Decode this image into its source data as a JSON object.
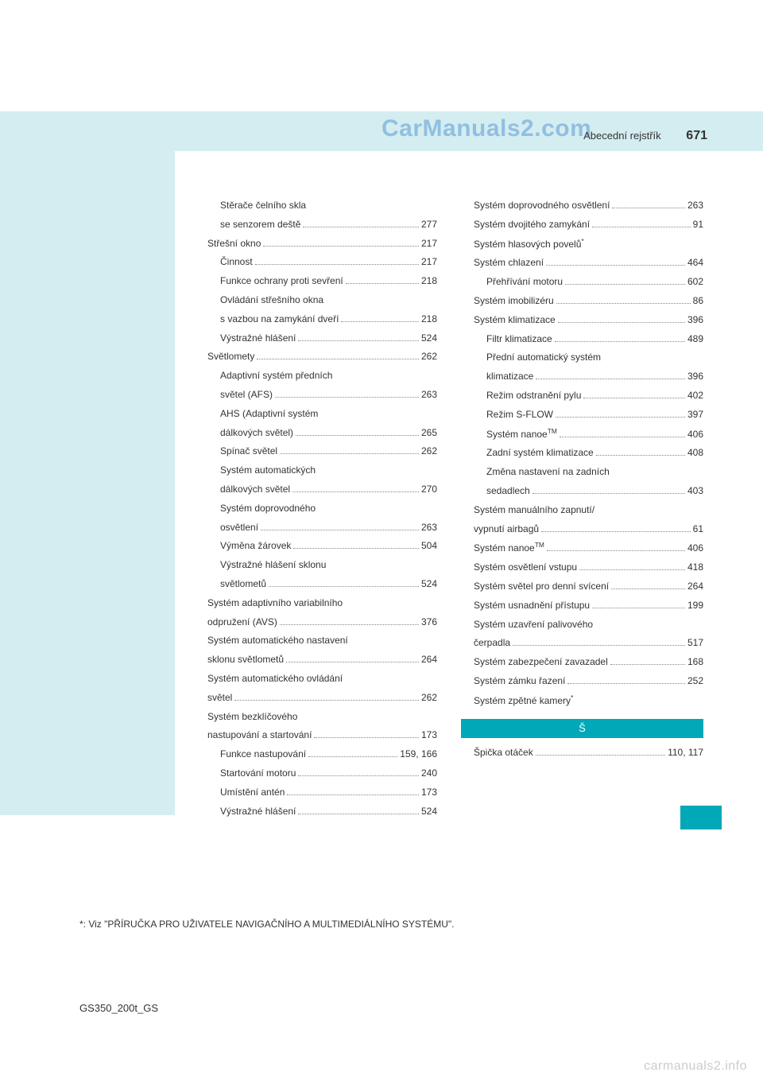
{
  "watermark_top": "CarManuals2.com",
  "watermark_bottom": "carmanuals2.info",
  "header_label": "Abecední rejstřík",
  "page_number": "671",
  "model": "GS350_200t_GS",
  "footnote": "*: Viz \"PŘÍRUČKA PRO UŽIVATELE NAVIGAČNÍHO A MULTIMEDIÁLNÍHO SYSTÉMU\".",
  "section_letter": "Š",
  "left": [
    {
      "indent": 2,
      "label": "Stěrače čelního skla",
      "page": ""
    },
    {
      "indent": 2,
      "label": "se senzorem deště",
      "page": "277"
    },
    {
      "indent": 1,
      "label": "Střešní okno",
      "page": "217"
    },
    {
      "indent": 2,
      "label": "Činnost",
      "page": "217"
    },
    {
      "indent": 2,
      "label": "Funkce ochrany proti sevření",
      "page": "218"
    },
    {
      "indent": 2,
      "label": "Ovládání střešního okna",
      "page": ""
    },
    {
      "indent": 2,
      "label": "s vazbou na zamykání dveří",
      "page": "218"
    },
    {
      "indent": 2,
      "label": "Výstražné hlášení",
      "page": "524"
    },
    {
      "indent": 1,
      "label": "Světlomety",
      "page": "262"
    },
    {
      "indent": 2,
      "label": "Adaptivní systém předních",
      "page": ""
    },
    {
      "indent": 2,
      "label": "světel (AFS)",
      "page": "263"
    },
    {
      "indent": 2,
      "label": "AHS (Adaptivní systém",
      "page": ""
    },
    {
      "indent": 2,
      "label": "dálkových světel)",
      "page": "265"
    },
    {
      "indent": 2,
      "label": "Spínač světel",
      "page": "262"
    },
    {
      "indent": 2,
      "label": "Systém automatických",
      "page": ""
    },
    {
      "indent": 2,
      "label": "dálkových světel",
      "page": "270"
    },
    {
      "indent": 2,
      "label": "Systém doprovodného",
      "page": ""
    },
    {
      "indent": 2,
      "label": "osvětlení",
      "page": "263"
    },
    {
      "indent": 2,
      "label": "Výměna žárovek",
      "page": "504"
    },
    {
      "indent": 2,
      "label": "Výstražné hlášení sklonu",
      "page": ""
    },
    {
      "indent": 2,
      "label": "světlometů",
      "page": "524"
    },
    {
      "indent": 1,
      "label": "Systém adaptivního variabilního",
      "page": ""
    },
    {
      "indent": 1,
      "label": "odpružení (AVS)",
      "page": "376"
    },
    {
      "indent": 1,
      "label": "Systém automatického nastavení",
      "page": ""
    },
    {
      "indent": 1,
      "label": "sklonu světlometů",
      "page": "264"
    },
    {
      "indent": 1,
      "label": "Systém automatického ovládání",
      "page": ""
    },
    {
      "indent": 1,
      "label": "světel",
      "page": "262"
    },
    {
      "indent": 1,
      "label": "Systém bezklíčového",
      "page": ""
    },
    {
      "indent": 1,
      "label": "nastupování a startování",
      "page": "173"
    },
    {
      "indent": 2,
      "label": "Funkce nastupování",
      "page": "159, 166"
    },
    {
      "indent": 2,
      "label": "Startování motoru",
      "page": "240"
    },
    {
      "indent": 2,
      "label": "Umístění antén",
      "page": "173"
    },
    {
      "indent": 2,
      "label": "Výstražné hlášení",
      "page": "524"
    }
  ],
  "right": [
    {
      "indent": 1,
      "label": "Systém doprovodného osvětlení",
      "page": "263"
    },
    {
      "indent": 1,
      "label": "Systém dvojitého zamykání",
      "page": "91"
    },
    {
      "indent": 1,
      "label": "Systém hlasových povelů*",
      "page": ""
    },
    {
      "indent": 1,
      "label": "Systém chlazení",
      "page": "464"
    },
    {
      "indent": 2,
      "label": "Přehřívání motoru",
      "page": "602"
    },
    {
      "indent": 1,
      "label": "Systém imobilizéru",
      "page": "86"
    },
    {
      "indent": 1,
      "label": "Systém klimatizace",
      "page": "396"
    },
    {
      "indent": 2,
      "label": "Filtr klimatizace",
      "page": "489"
    },
    {
      "indent": 2,
      "label": "Přední automatický systém",
      "page": ""
    },
    {
      "indent": 2,
      "label": "klimatizace",
      "page": "396"
    },
    {
      "indent": 2,
      "label": "Režim odstranění pylu",
      "page": "402"
    },
    {
      "indent": 2,
      "label": "Režim S-FLOW",
      "page": "397"
    },
    {
      "indent": 2,
      "label": "Systém nanoe™",
      "page": "406"
    },
    {
      "indent": 2,
      "label": "Zadní systém klimatizace",
      "page": "408"
    },
    {
      "indent": 2,
      "label": "Změna nastavení na zadních",
      "page": ""
    },
    {
      "indent": 2,
      "label": "sedadlech",
      "page": "403"
    },
    {
      "indent": 1,
      "label": "Systém manuálního zapnutí/",
      "page": ""
    },
    {
      "indent": 1,
      "label": "vypnutí airbagů",
      "page": "61"
    },
    {
      "indent": 1,
      "label": "Systém nanoe™",
      "page": "406"
    },
    {
      "indent": 1,
      "label": "Systém osvětlení vstupu",
      "page": "418"
    },
    {
      "indent": 1,
      "label": "Systém světel pro denní svícení",
      "page": "264"
    },
    {
      "indent": 1,
      "label": "Systém usnadnění přístupu",
      "page": "199"
    },
    {
      "indent": 1,
      "label": "Systém uzavření palivového",
      "page": ""
    },
    {
      "indent": 1,
      "label": "čerpadla",
      "page": "517"
    },
    {
      "indent": 1,
      "label": "Systém zabezpečení zavazadel",
      "page": "168"
    },
    {
      "indent": 1,
      "label": "Systém zámku řazení",
      "page": "252"
    },
    {
      "indent": 1,
      "label": "Systém zpětné kamery*",
      "page": ""
    }
  ],
  "right_after": [
    {
      "indent": 1,
      "label": "Špička otáček",
      "page": "110, 117"
    }
  ]
}
